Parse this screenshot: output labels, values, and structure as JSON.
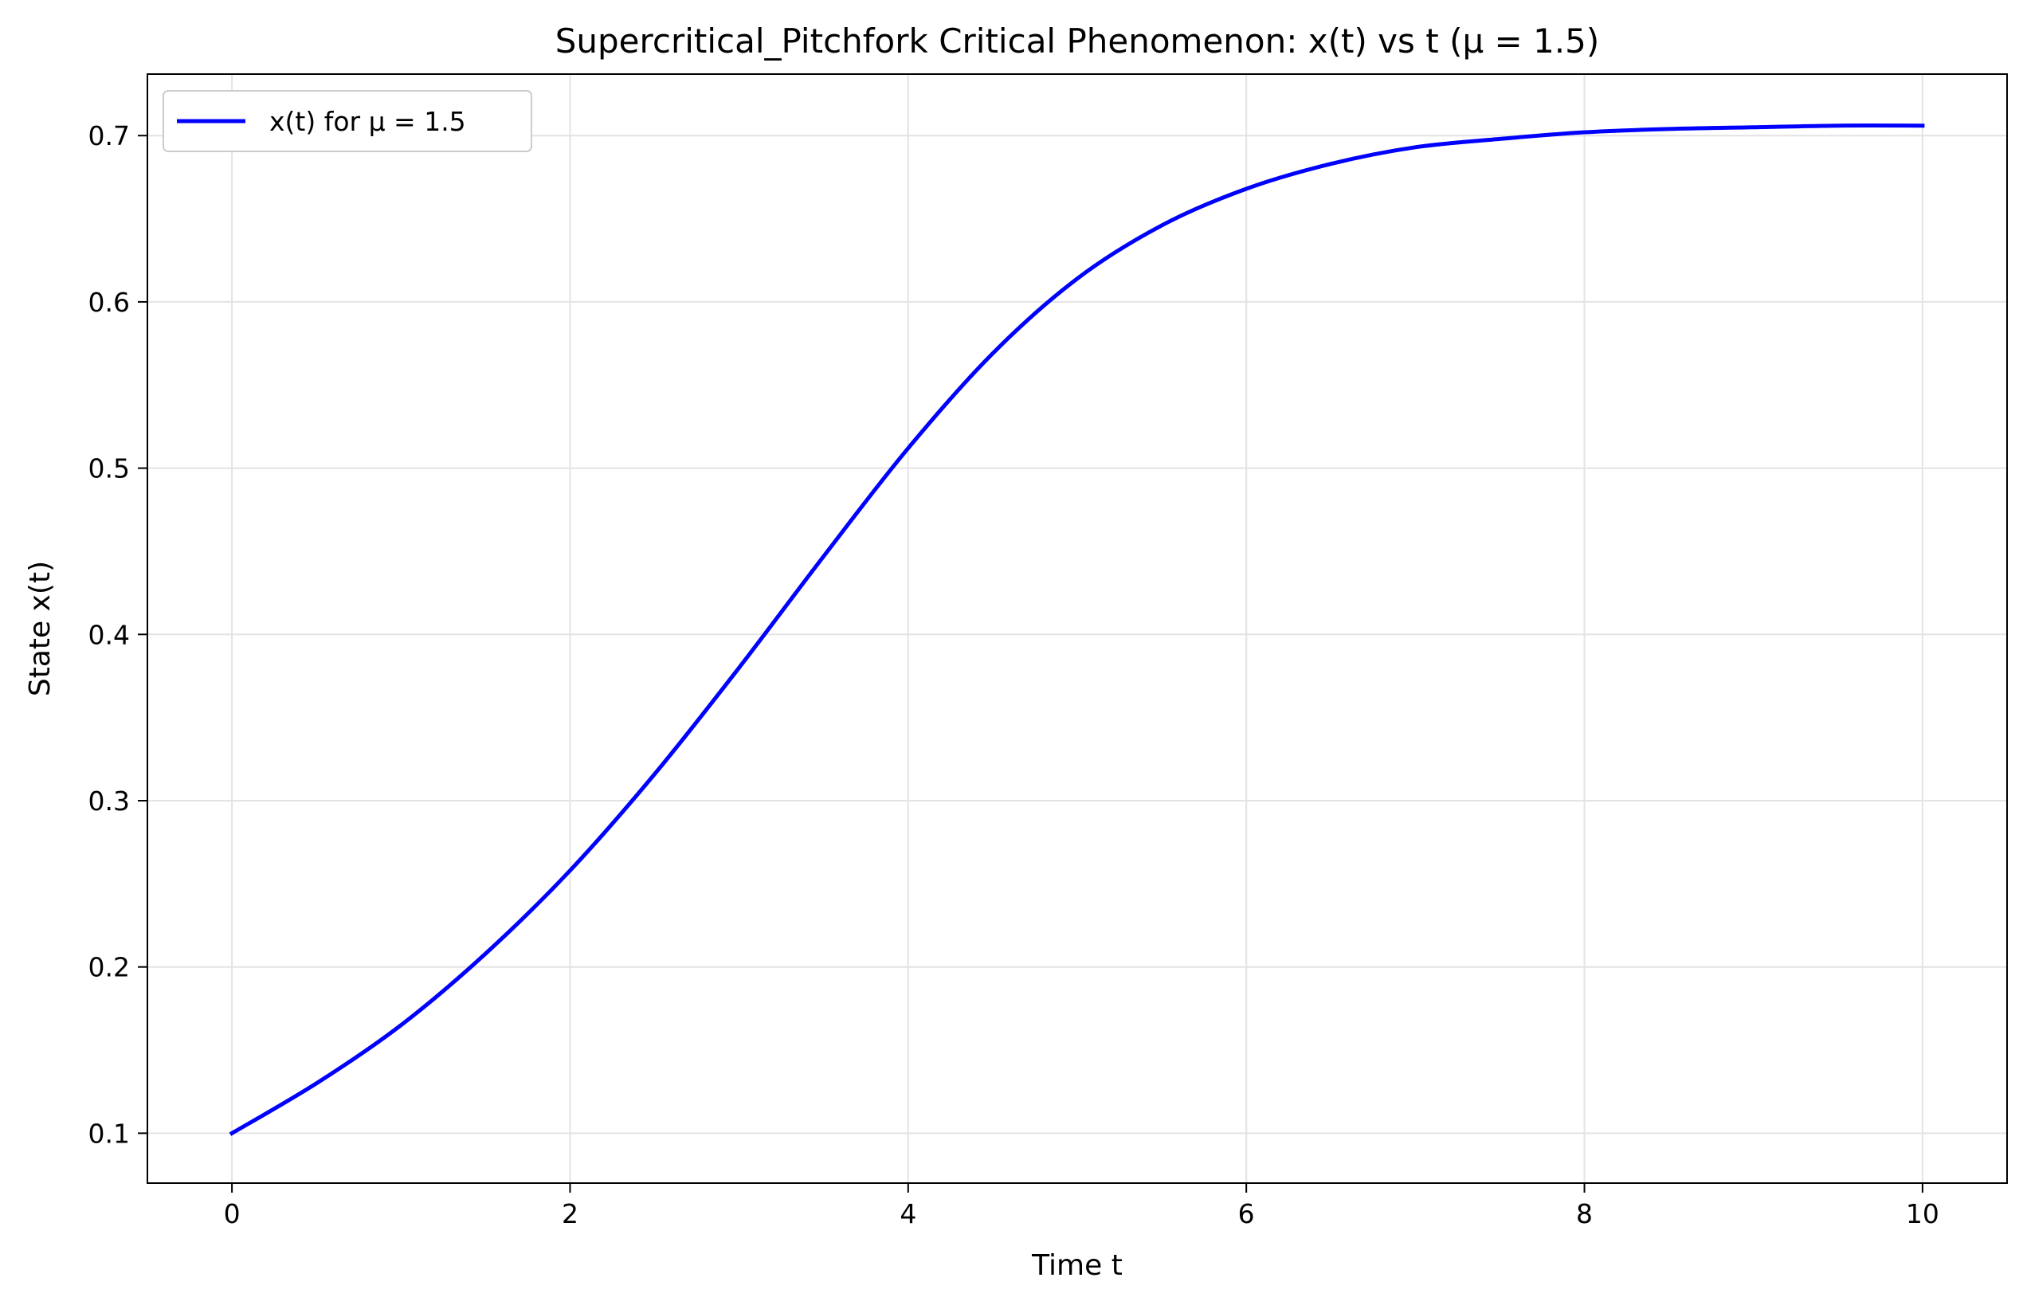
{
  "chart_data": {
    "type": "line",
    "title": "Supercritical_Pitchfork Critical Phenomenon: x(t) vs t (μ = 1.5)",
    "xlabel": "Time t",
    "ylabel": "State x(t)",
    "xlim": [
      -0.5,
      10.5
    ],
    "ylim": [
      0.07,
      0.737
    ],
    "xticks": [
      0,
      2,
      4,
      6,
      8,
      10
    ],
    "xtick_labels": [
      "0",
      "2",
      "4",
      "6",
      "8",
      "10"
    ],
    "yticks": [
      0.1,
      0.2,
      0.3,
      0.4,
      0.5,
      0.6,
      0.7
    ],
    "ytick_labels": [
      "0.1",
      "0.2",
      "0.3",
      "0.4",
      "0.5",
      "0.6",
      "0.7"
    ],
    "grid": true,
    "legend_position": "top-left",
    "series": [
      {
        "name": "x(t) for μ = 1.5",
        "color": "#0000ff",
        "x": [
          0,
          0.5,
          1.0,
          1.5,
          2.0,
          2.5,
          3.0,
          3.5,
          4.0,
          4.5,
          5.0,
          5.5,
          6.0,
          6.5,
          7.0,
          7.5,
          8.0,
          8.5,
          9.0,
          9.5,
          10.0
        ],
        "y": [
          0.1,
          0.13,
          0.165,
          0.208,
          0.258,
          0.316,
          0.38,
          0.447,
          0.512,
          0.569,
          0.614,
          0.646,
          0.668,
          0.683,
          0.693,
          0.698,
          0.702,
          0.704,
          0.705,
          0.706,
          0.706
        ]
      }
    ]
  }
}
